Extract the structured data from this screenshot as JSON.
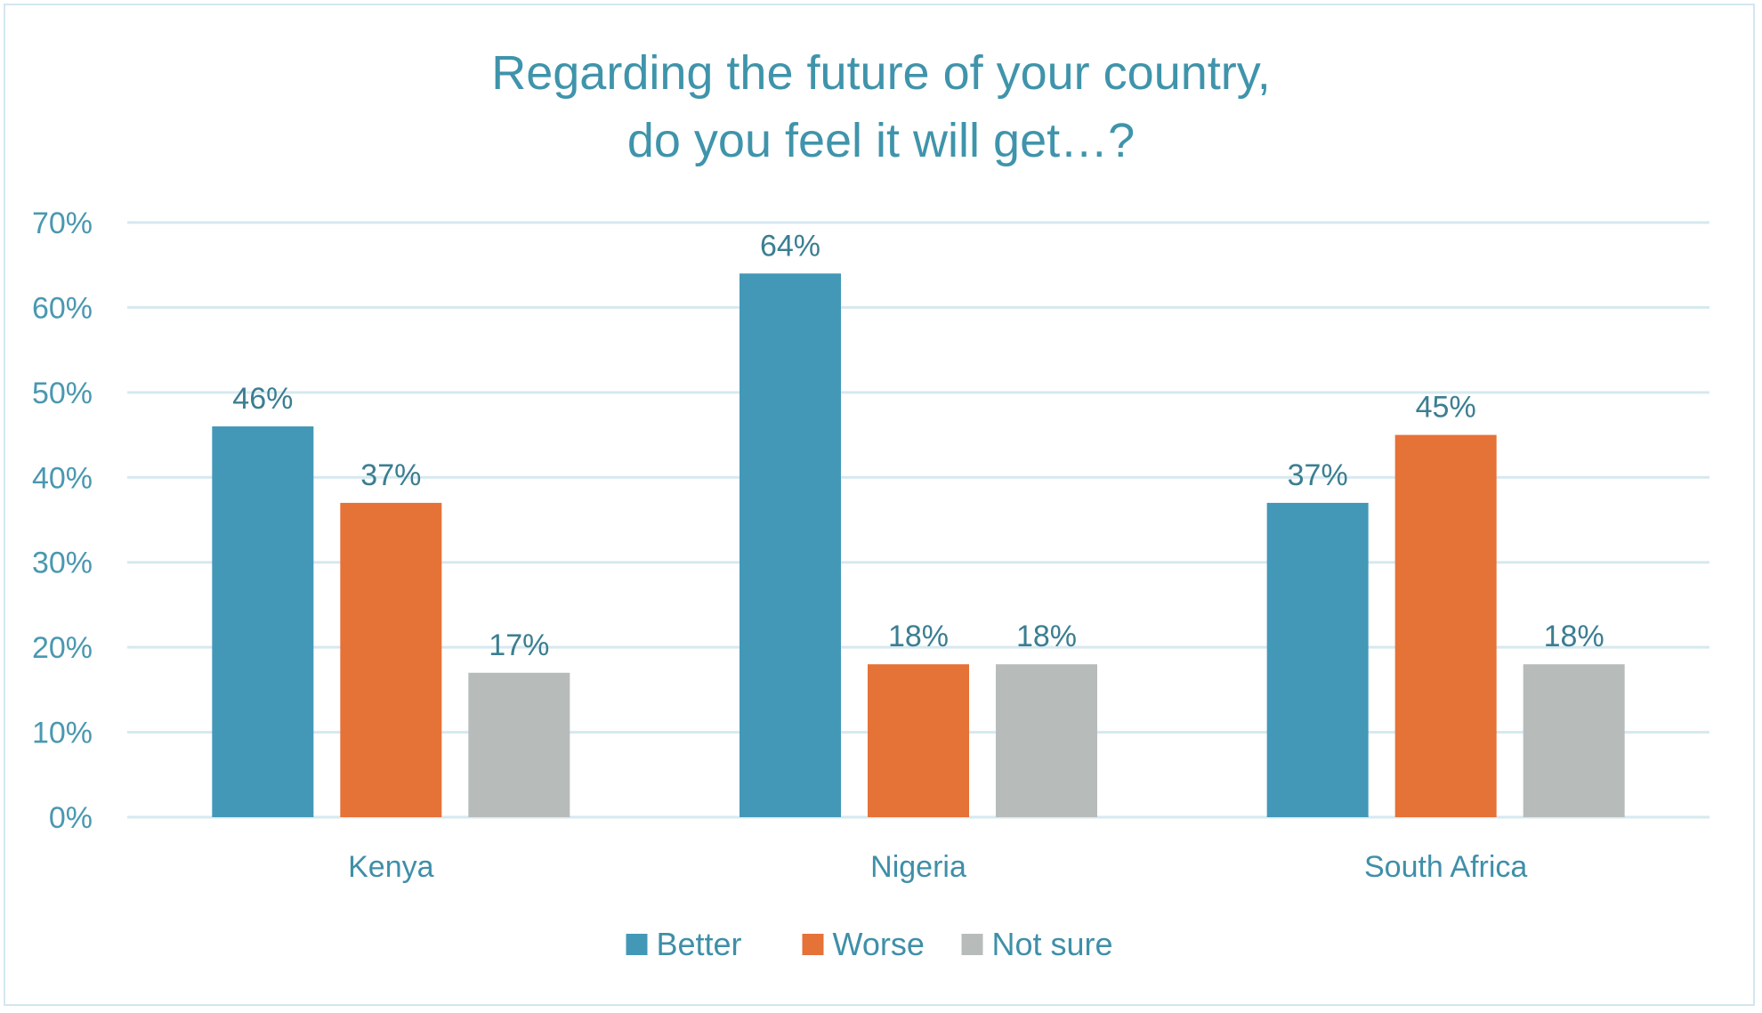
{
  "chart_data": {
    "type": "bar",
    "title": [
      "Regarding the future of your country,",
      "do you feel it will get…?"
    ],
    "categories": [
      "Kenya",
      "Nigeria",
      "South Africa"
    ],
    "series": [
      {
        "name": "Better",
        "values": [
          46,
          64,
          37
        ],
        "color": "#4398b7"
      },
      {
        "name": "Worse",
        "values": [
          37,
          18,
          45
        ],
        "color": "#e57237"
      },
      {
        "name": "Not sure",
        "values": [
          17,
          18,
          18
        ],
        "color": "#b7bcbb"
      }
    ],
    "value_suffix": "%",
    "ylim": [
      0,
      70
    ],
    "yticks": [
      "0%",
      "10%",
      "20%",
      "30%",
      "40%",
      "50%",
      "60%",
      "70%"
    ],
    "grid": true,
    "legend": "bottom",
    "xlabel": "",
    "ylabel": ""
  }
}
